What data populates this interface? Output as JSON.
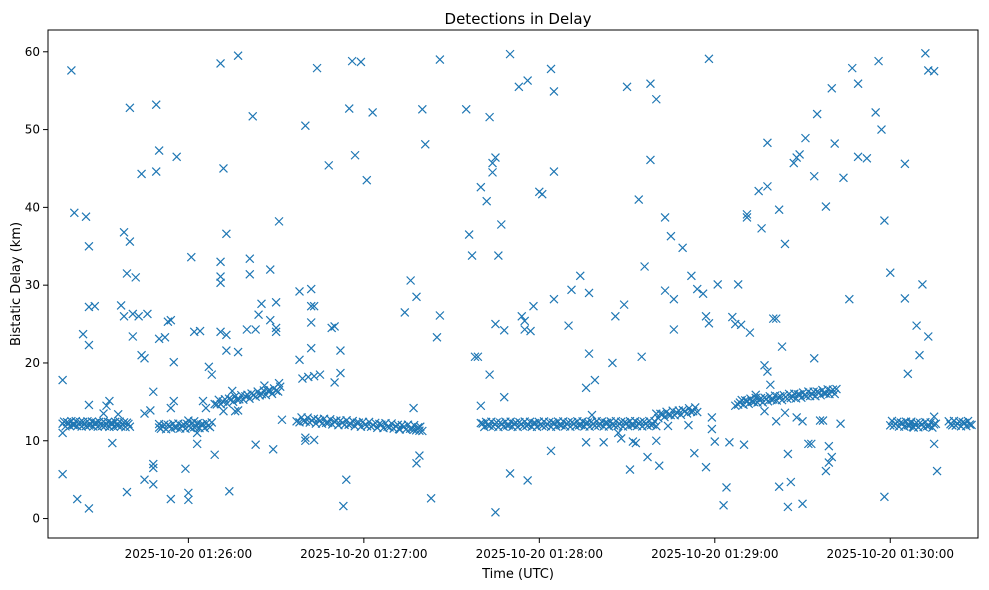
{
  "chart_data": {
    "type": "scatter",
    "title": "Detections in Delay",
    "xlabel": "Time (UTC)",
    "ylabel": "Bistatic Delay (km)",
    "marker": "x",
    "color": "#1f77b4",
    "xlim_seconds": [
      -48,
      270
    ],
    "ylim": [
      -2.5,
      62.8
    ],
    "x_origin_label": "2025-10-20 01:26:00",
    "xticks": [
      {
        "seconds": 0,
        "label": "2025-10-20 01:26:00"
      },
      {
        "seconds": 60,
        "label": "2025-10-20 01:27:00"
      },
      {
        "seconds": 120,
        "label": "2025-10-20 01:28:00"
      },
      {
        "seconds": 180,
        "label": "2025-10-20 01:29:00"
      },
      {
        "seconds": 240,
        "label": "2025-10-20 01:30:00"
      }
    ],
    "yticks": [
      0,
      10,
      20,
      30,
      40,
      50,
      60
    ],
    "tracks": [
      {
        "name": "band-1",
        "t_start": -43,
        "t_end": -20,
        "y_start": 12.2,
        "y_end": 12.1,
        "step": 0.5
      },
      {
        "name": "band-2",
        "t_start": -10,
        "t_end": 8,
        "y_start": 11.8,
        "y_end": 12.0,
        "step": 0.6
      },
      {
        "name": "ramp-1",
        "t_start": 9,
        "t_end": 32,
        "y_start": 14.8,
        "y_end": 16.6,
        "step": 0.7
      },
      {
        "name": "decay-1",
        "t_start": 38,
        "t_end": 80,
        "y_start": 12.7,
        "y_end": 11.6,
        "step": 0.7
      },
      {
        "name": "band-3",
        "t_start": 100,
        "t_end": 160,
        "y_start": 12.1,
        "y_end": 12.2,
        "step": 0.6
      },
      {
        "name": "band-4",
        "t_start": 160,
        "t_end": 174,
        "y_start": 13.2,
        "y_end": 14.0,
        "step": 0.7
      },
      {
        "name": "ramp-2",
        "t_start": 188,
        "t_end": 222,
        "y_start": 14.9,
        "y_end": 16.4,
        "step": 0.6
      },
      {
        "name": "band-5",
        "t_start": 240,
        "t_end": 256,
        "y_start": 12.2,
        "y_end": 12.0,
        "step": 0.6
      },
      {
        "name": "band-6",
        "t_start": 260,
        "t_end": 268,
        "y_start": 12.2,
        "y_end": 12.2,
        "step": 0.6
      }
    ],
    "points": [
      [
        -43,
        11.0
      ],
      [
        -43,
        17.8
      ],
      [
        -43,
        5.7
      ],
      [
        -40,
        57.6
      ],
      [
        -39,
        39.3
      ],
      [
        -38,
        2.5
      ],
      [
        -36,
        23.7
      ],
      [
        -35,
        38.8
      ],
      [
        -34,
        35.0
      ],
      [
        -34,
        27.2
      ],
      [
        -34,
        22.3
      ],
      [
        -34,
        14.6
      ],
      [
        -34,
        1.3
      ],
      [
        -32,
        27.3
      ],
      [
        -29,
        13.5
      ],
      [
        -28,
        14.5
      ],
      [
        -27,
        15.1
      ],
      [
        -27,
        11.8
      ],
      [
        -26,
        9.7
      ],
      [
        -24,
        13.4
      ],
      [
        -23,
        27.4
      ],
      [
        -22,
        26.0
      ],
      [
        -22,
        36.8
      ],
      [
        -21,
        31.5
      ],
      [
        -21,
        3.4
      ],
      [
        -20,
        35.6
      ],
      [
        -20,
        52.8
      ],
      [
        -19,
        26.3
      ],
      [
        -19,
        23.4
      ],
      [
        -18,
        31.0
      ],
      [
        -17,
        26.0
      ],
      [
        -16,
        44.3
      ],
      [
        -16,
        21.0
      ],
      [
        -15,
        20.6
      ],
      [
        -15,
        13.5
      ],
      [
        -15,
        5.0
      ],
      [
        -14,
        26.3
      ],
      [
        -13,
        13.9
      ],
      [
        -12,
        16.3
      ],
      [
        -12,
        7.0
      ],
      [
        -12,
        6.5
      ],
      [
        -12,
        4.4
      ],
      [
        -11,
        53.2
      ],
      [
        -11,
        44.6
      ],
      [
        -10,
        47.3
      ],
      [
        -10,
        23.1
      ],
      [
        -10,
        11.7
      ],
      [
        -8,
        23.3
      ],
      [
        -7,
        25.3
      ],
      [
        -6,
        25.5
      ],
      [
        -6,
        14.2
      ],
      [
        -6,
        2.5
      ],
      [
        -5,
        15.1
      ],
      [
        -5,
        20.1
      ],
      [
        -4,
        46.5
      ],
      [
        -1,
        6.4
      ],
      [
        0,
        12.6
      ],
      [
        0,
        3.3
      ],
      [
        0,
        2.4
      ],
      [
        1,
        33.6
      ],
      [
        2,
        24.0
      ],
      [
        2,
        12.5
      ],
      [
        3,
        11.0
      ],
      [
        3,
        9.6
      ],
      [
        4,
        24.1
      ],
      [
        5,
        15.1
      ],
      [
        6,
        14.2
      ],
      [
        7,
        19.5
      ],
      [
        8,
        18.5
      ],
      [
        9,
        8.2
      ],
      [
        11,
        33.0
      ],
      [
        11,
        58.5
      ],
      [
        11,
        31.1
      ],
      [
        11,
        30.3
      ],
      [
        11,
        24.0
      ],
      [
        12,
        45.0
      ],
      [
        12,
        13.8
      ],
      [
        13,
        36.6
      ],
      [
        13,
        23.6
      ],
      [
        13,
        21.6
      ],
      [
        14,
        3.5
      ],
      [
        15,
        16.4
      ],
      [
        16,
        13.8
      ],
      [
        17,
        59.5
      ],
      [
        17,
        21.4
      ],
      [
        17,
        13.9
      ],
      [
        20,
        24.3
      ],
      [
        21,
        33.4
      ],
      [
        21,
        31.4
      ],
      [
        22,
        51.7
      ],
      [
        23,
        24.3
      ],
      [
        23,
        9.5
      ],
      [
        24,
        26.2
      ],
      [
        25,
        27.6
      ],
      [
        26,
        17.1
      ],
      [
        28,
        32.0
      ],
      [
        28,
        25.5
      ],
      [
        29,
        8.9
      ],
      [
        30,
        24.0
      ],
      [
        30,
        24.5
      ],
      [
        30,
        27.8
      ],
      [
        31,
        38.2
      ],
      [
        31,
        17.4
      ],
      [
        32,
        12.7
      ],
      [
        37,
        12.5
      ],
      [
        38,
        29.2
      ],
      [
        38,
        20.4
      ],
      [
        39,
        18.0
      ],
      [
        40,
        50.5
      ],
      [
        40,
        10.0
      ],
      [
        40,
        10.4
      ],
      [
        41,
        18.2
      ],
      [
        42,
        29.5
      ],
      [
        42,
        27.3
      ],
      [
        42,
        25.2
      ],
      [
        42,
        21.9
      ],
      [
        43,
        27.3
      ],
      [
        43,
        10.1
      ],
      [
        43,
        18.3
      ],
      [
        44,
        57.9
      ],
      [
        45,
        18.5
      ],
      [
        48,
        45.4
      ],
      [
        49,
        24.5
      ],
      [
        50,
        24.7
      ],
      [
        50,
        17.5
      ],
      [
        52,
        21.6
      ],
      [
        52,
        18.7
      ],
      [
        53,
        1.6
      ],
      [
        54,
        5.0
      ],
      [
        55,
        52.7
      ],
      [
        56,
        58.8
      ],
      [
        57,
        46.7
      ],
      [
        59,
        58.7
      ],
      [
        61,
        43.5
      ],
      [
        63,
        52.2
      ],
      [
        72,
        11.5
      ],
      [
        74,
        26.5
      ],
      [
        76,
        30.6
      ],
      [
        77,
        14.2
      ],
      [
        77,
        11.4
      ],
      [
        78,
        28.5
      ],
      [
        78,
        7.1
      ],
      [
        79,
        11.3
      ],
      [
        79,
        8.1
      ],
      [
        80,
        52.6
      ],
      [
        81,
        48.1
      ],
      [
        83,
        2.6
      ],
      [
        85,
        23.3
      ],
      [
        86,
        59.0
      ],
      [
        86,
        26.1
      ],
      [
        95,
        52.6
      ],
      [
        96,
        36.5
      ],
      [
        97,
        33.8
      ],
      [
        98,
        20.8
      ],
      [
        99,
        20.8
      ],
      [
        100,
        42.6
      ],
      [
        100,
        14.5
      ],
      [
        102,
        40.8
      ],
      [
        103,
        51.6
      ],
      [
        103,
        18.5
      ],
      [
        104,
        45.7
      ],
      [
        104,
        44.5
      ],
      [
        105,
        46.4
      ],
      [
        105,
        25.0
      ],
      [
        105,
        0.8
      ],
      [
        106,
        33.8
      ],
      [
        107,
        37.8
      ],
      [
        108,
        24.2
      ],
      [
        108,
        15.6
      ],
      [
        110,
        59.7
      ],
      [
        110,
        5.8
      ],
      [
        113,
        55.5
      ],
      [
        114,
        26.0
      ],
      [
        115,
        24.3
      ],
      [
        115,
        25.4
      ],
      [
        116,
        56.3
      ],
      [
        116,
        4.9
      ],
      [
        117,
        24.1
      ],
      [
        118,
        27.3
      ],
      [
        120,
        42.0
      ],
      [
        121,
        41.7
      ],
      [
        124,
        57.8
      ],
      [
        124,
        8.7
      ],
      [
        125,
        54.9
      ],
      [
        125,
        28.2
      ],
      [
        125,
        44.6
      ],
      [
        130,
        24.8
      ],
      [
        131,
        29.4
      ],
      [
        134,
        31.2
      ],
      [
        136,
        9.8
      ],
      [
        136,
        16.8
      ],
      [
        137,
        29.0
      ],
      [
        137,
        21.2
      ],
      [
        138,
        13.3
      ],
      [
        139,
        17.8
      ],
      [
        142,
        9.8
      ],
      [
        145,
        20.0
      ],
      [
        146,
        26.0
      ],
      [
        147,
        11.0
      ],
      [
        148,
        10.3
      ],
      [
        149,
        27.5
      ],
      [
        150,
        55.5
      ],
      [
        151,
        6.3
      ],
      [
        152,
        9.9
      ],
      [
        153,
        9.7
      ],
      [
        154,
        41.0
      ],
      [
        155,
        20.8
      ],
      [
        156,
        32.4
      ],
      [
        157,
        7.9
      ],
      [
        158,
        55.9
      ],
      [
        158,
        46.1
      ],
      [
        160,
        53.9
      ],
      [
        160,
        10.0
      ],
      [
        161,
        6.8
      ],
      [
        163,
        38.7
      ],
      [
        163,
        29.3
      ],
      [
        164,
        11.9
      ],
      [
        165,
        36.3
      ],
      [
        166,
        28.2
      ],
      [
        166,
        24.3
      ],
      [
        169,
        34.8
      ],
      [
        171,
        12.0
      ],
      [
        172,
        31.2
      ],
      [
        173,
        8.4
      ],
      [
        174,
        29.5
      ],
      [
        176,
        28.9
      ],
      [
        177,
        26.0
      ],
      [
        177,
        6.6
      ],
      [
        178,
        59.1
      ],
      [
        178,
        25.1
      ],
      [
        179,
        13.0
      ],
      [
        179,
        11.5
      ],
      [
        180,
        9.9
      ],
      [
        181,
        30.1
      ],
      [
        183,
        1.7
      ],
      [
        184,
        4.0
      ],
      [
        185,
        9.8
      ],
      [
        186,
        25.9
      ],
      [
        187,
        25.0
      ],
      [
        187,
        14.5
      ],
      [
        188,
        30.1
      ],
      [
        189,
        24.9
      ],
      [
        190,
        9.5
      ],
      [
        191,
        39.1
      ],
      [
        191,
        38.7
      ],
      [
        192,
        23.9
      ],
      [
        194,
        15.9
      ],
      [
        195,
        42.1
      ],
      [
        196,
        37.3
      ],
      [
        197,
        19.7
      ],
      [
        197,
        13.8
      ],
      [
        198,
        48.3
      ],
      [
        198,
        42.7
      ],
      [
        198,
        18.9
      ],
      [
        199,
        17.2
      ],
      [
        200,
        25.7
      ],
      [
        201,
        25.7
      ],
      [
        201,
        12.5
      ],
      [
        202,
        39.7
      ],
      [
        202,
        4.1
      ],
      [
        203,
        22.1
      ],
      [
        204,
        35.3
      ],
      [
        204,
        13.6
      ],
      [
        205,
        8.3
      ],
      [
        205,
        1.5
      ],
      [
        206,
        4.7
      ],
      [
        207,
        45.7
      ],
      [
        208,
        46.4
      ],
      [
        208,
        13.0
      ],
      [
        209,
        46.8
      ],
      [
        210,
        12.5
      ],
      [
        210,
        1.9
      ],
      [
        211,
        48.9
      ],
      [
        212,
        9.6
      ],
      [
        213,
        9.6
      ],
      [
        214,
        20.6
      ],
      [
        214,
        44.0
      ],
      [
        215,
        52.0
      ],
      [
        216,
        12.6
      ],
      [
        217,
        12.6
      ],
      [
        218,
        6.1
      ],
      [
        218,
        40.1
      ],
      [
        219,
        9.3
      ],
      [
        219,
        7.2
      ],
      [
        220,
        55.3
      ],
      [
        220,
        7.9
      ],
      [
        221,
        48.2
      ],
      [
        223,
        12.2
      ],
      [
        224,
        43.8
      ],
      [
        226,
        28.2
      ],
      [
        227,
        57.9
      ],
      [
        229,
        55.9
      ],
      [
        229,
        46.5
      ],
      [
        232,
        46.3
      ],
      [
        235,
        52.2
      ],
      [
        236,
        58.8
      ],
      [
        237,
        50.0
      ],
      [
        238,
        38.3
      ],
      [
        238,
        2.8
      ],
      [
        240,
        31.6
      ],
      [
        245,
        45.6
      ],
      [
        245,
        28.3
      ],
      [
        246,
        18.6
      ],
      [
        247,
        12.3
      ],
      [
        248,
        11.7
      ],
      [
        249,
        24.8
      ],
      [
        250,
        21.0
      ],
      [
        251,
        30.1
      ],
      [
        252,
        59.8
      ],
      [
        253,
        23.4
      ],
      [
        253,
        57.6
      ],
      [
        255,
        57.5
      ],
      [
        255,
        13.1
      ],
      [
        255,
        9.6
      ],
      [
        256,
        6.1
      ]
    ]
  }
}
